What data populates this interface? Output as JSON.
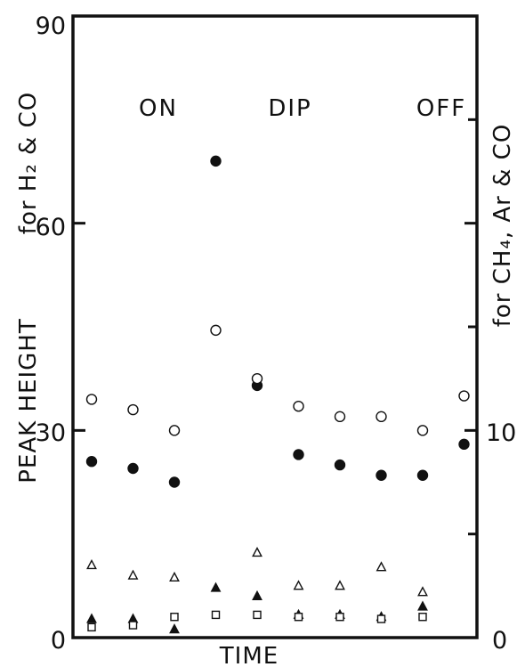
{
  "chart_data": {
    "type": "scatter",
    "title": "",
    "xlabel": "TIME",
    "ylabel": "PEAK HEIGHT",
    "ylabel_left_annotation": "for H₂ & CO",
    "ylabel_right_annotation": "for CH₄, Ar & CO",
    "left_axis": {
      "ylim": [
        0,
        90
      ],
      "ticks": [
        0,
        30,
        60,
        90
      ]
    },
    "right_axis": {
      "ylim": [
        0,
        30
      ],
      "ticks": [
        0,
        10
      ]
    },
    "phase_labels": [
      "ON",
      "DIP",
      "OFF"
    ],
    "x": [
      1,
      2,
      3,
      4,
      5,
      6,
      7,
      8,
      9,
      10
    ],
    "grid": false,
    "legend": "none",
    "series": [
      {
        "axis": "left",
        "marker": "filled-circle",
        "values": [
          25.5,
          24.5,
          22.5,
          69,
          36.5,
          26.5,
          25,
          23.5,
          23.5,
          28
        ]
      },
      {
        "axis": "left",
        "marker": "open-circle",
        "values": [
          34.5,
          33,
          30,
          44.5,
          37.5,
          33.5,
          32,
          32,
          30,
          35
        ]
      },
      {
        "axis": "right",
        "marker": "open-triangle",
        "values": [
          3.5,
          3,
          2.9,
          null,
          4.1,
          2.5,
          2.5,
          3.4,
          2.2,
          null
        ]
      },
      {
        "axis": "right",
        "marker": "filled-triangle",
        "values": [
          0.9,
          0.9,
          0.4,
          2.4,
          2,
          1.1,
          1.1,
          1,
          1.5,
          null
        ]
      },
      {
        "axis": "right",
        "marker": "open-square",
        "values": [
          0.5,
          0.6,
          1,
          1.1,
          1.1,
          1,
          1,
          0.9,
          1,
          null
        ]
      }
    ]
  }
}
